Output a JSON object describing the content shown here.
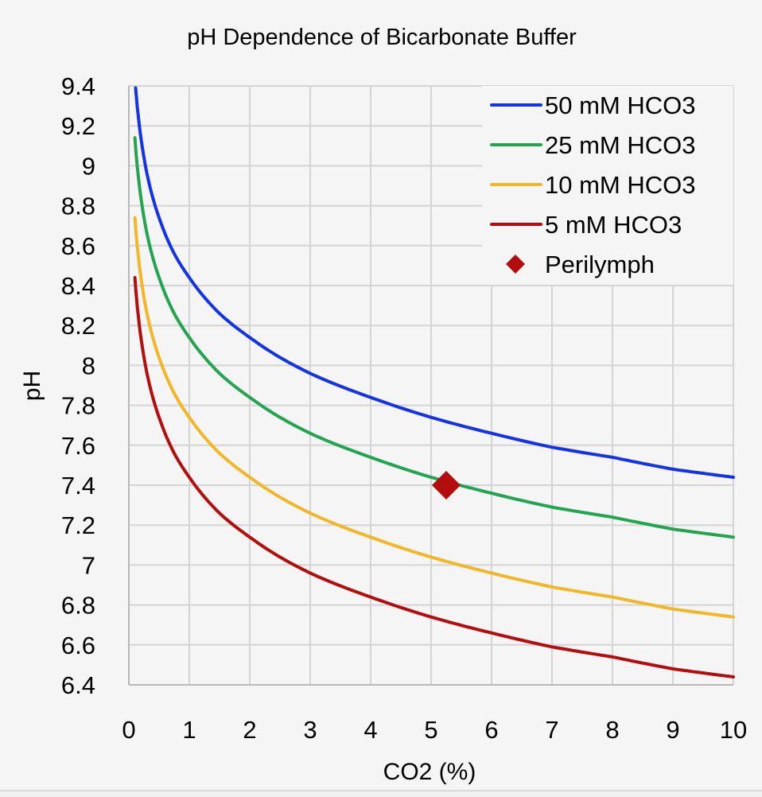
{
  "chart_data": {
    "type": "line",
    "title": "pH Dependence of Bicarbonate Buffer",
    "xlabel": "CO2 (%)",
    "ylabel": "pH",
    "xlim": [
      0,
      10
    ],
    "ylim": [
      6.4,
      9.4
    ],
    "x_ticks": [
      "0",
      "1",
      "2",
      "3",
      "4",
      "5",
      "6",
      "7",
      "8",
      "9",
      "10"
    ],
    "y_ticks": [
      "6.4",
      "6.6",
      "6.8",
      "7",
      "7.2",
      "7.4",
      "7.6",
      "7.8",
      "8",
      "8.2",
      "8.4",
      "8.6",
      "8.8",
      "9",
      "9.2",
      "9.4"
    ],
    "x_tick_values": [
      0,
      1,
      2,
      3,
      4,
      5,
      6,
      7,
      8,
      9,
      10
    ],
    "y_tick_values": [
      6.4,
      6.6,
      6.8,
      7.0,
      7.2,
      7.4,
      7.6,
      7.8,
      8.0,
      8.2,
      8.4,
      8.6,
      8.8,
      9.0,
      9.2,
      9.4
    ],
    "grid": true,
    "legend_position": "top-right",
    "series": [
      {
        "name": "50 mM HCO3",
        "color": "#1432e6",
        "x": [
          0.1,
          0.2,
          0.3,
          0.5,
          0.75,
          1,
          1.5,
          2,
          2.5,
          3,
          4,
          5,
          6,
          7,
          8,
          9,
          10
        ],
        "values": [
          9.44,
          9.14,
          8.96,
          8.74,
          8.56,
          8.44,
          8.26,
          8.14,
          8.04,
          7.96,
          7.84,
          7.74,
          7.66,
          7.59,
          7.54,
          7.48,
          7.44
        ]
      },
      {
        "name": "25 mM HCO3",
        "color": "#23a550",
        "x": [
          0.1,
          0.2,
          0.3,
          0.5,
          0.75,
          1,
          1.5,
          2,
          2.5,
          3,
          4,
          5,
          6,
          7,
          8,
          9,
          10
        ],
        "values": [
          9.14,
          8.84,
          8.66,
          8.44,
          8.26,
          8.14,
          7.96,
          7.84,
          7.74,
          7.66,
          7.54,
          7.44,
          7.36,
          7.29,
          7.24,
          7.18,
          7.14
        ]
      },
      {
        "name": "10 mM HCO3",
        "color": "#f2b627",
        "x": [
          0.1,
          0.2,
          0.3,
          0.5,
          0.75,
          1,
          1.5,
          2,
          2.5,
          3,
          4,
          5,
          6,
          7,
          8,
          9,
          10
        ],
        "values": [
          8.74,
          8.44,
          8.26,
          8.04,
          7.86,
          7.74,
          7.56,
          7.44,
          7.34,
          7.26,
          7.14,
          7.04,
          6.96,
          6.89,
          6.84,
          6.78,
          6.74
        ]
      },
      {
        "name": "5 mM HCO3",
        "color": "#b40d0d",
        "x": [
          0.1,
          0.2,
          0.3,
          0.5,
          0.75,
          1,
          1.5,
          2,
          2.5,
          3,
          4,
          5,
          6,
          7,
          8,
          9,
          10
        ],
        "values": [
          8.44,
          8.14,
          7.96,
          7.74,
          7.56,
          7.44,
          7.26,
          7.14,
          7.04,
          6.96,
          6.84,
          6.74,
          6.66,
          6.59,
          6.54,
          6.48,
          6.44
        ]
      }
    ],
    "points": [
      {
        "name": "Perilymph",
        "color": "#b40d0d",
        "marker": "diamond",
        "x": 5.25,
        "y": 7.4
      }
    ]
  }
}
